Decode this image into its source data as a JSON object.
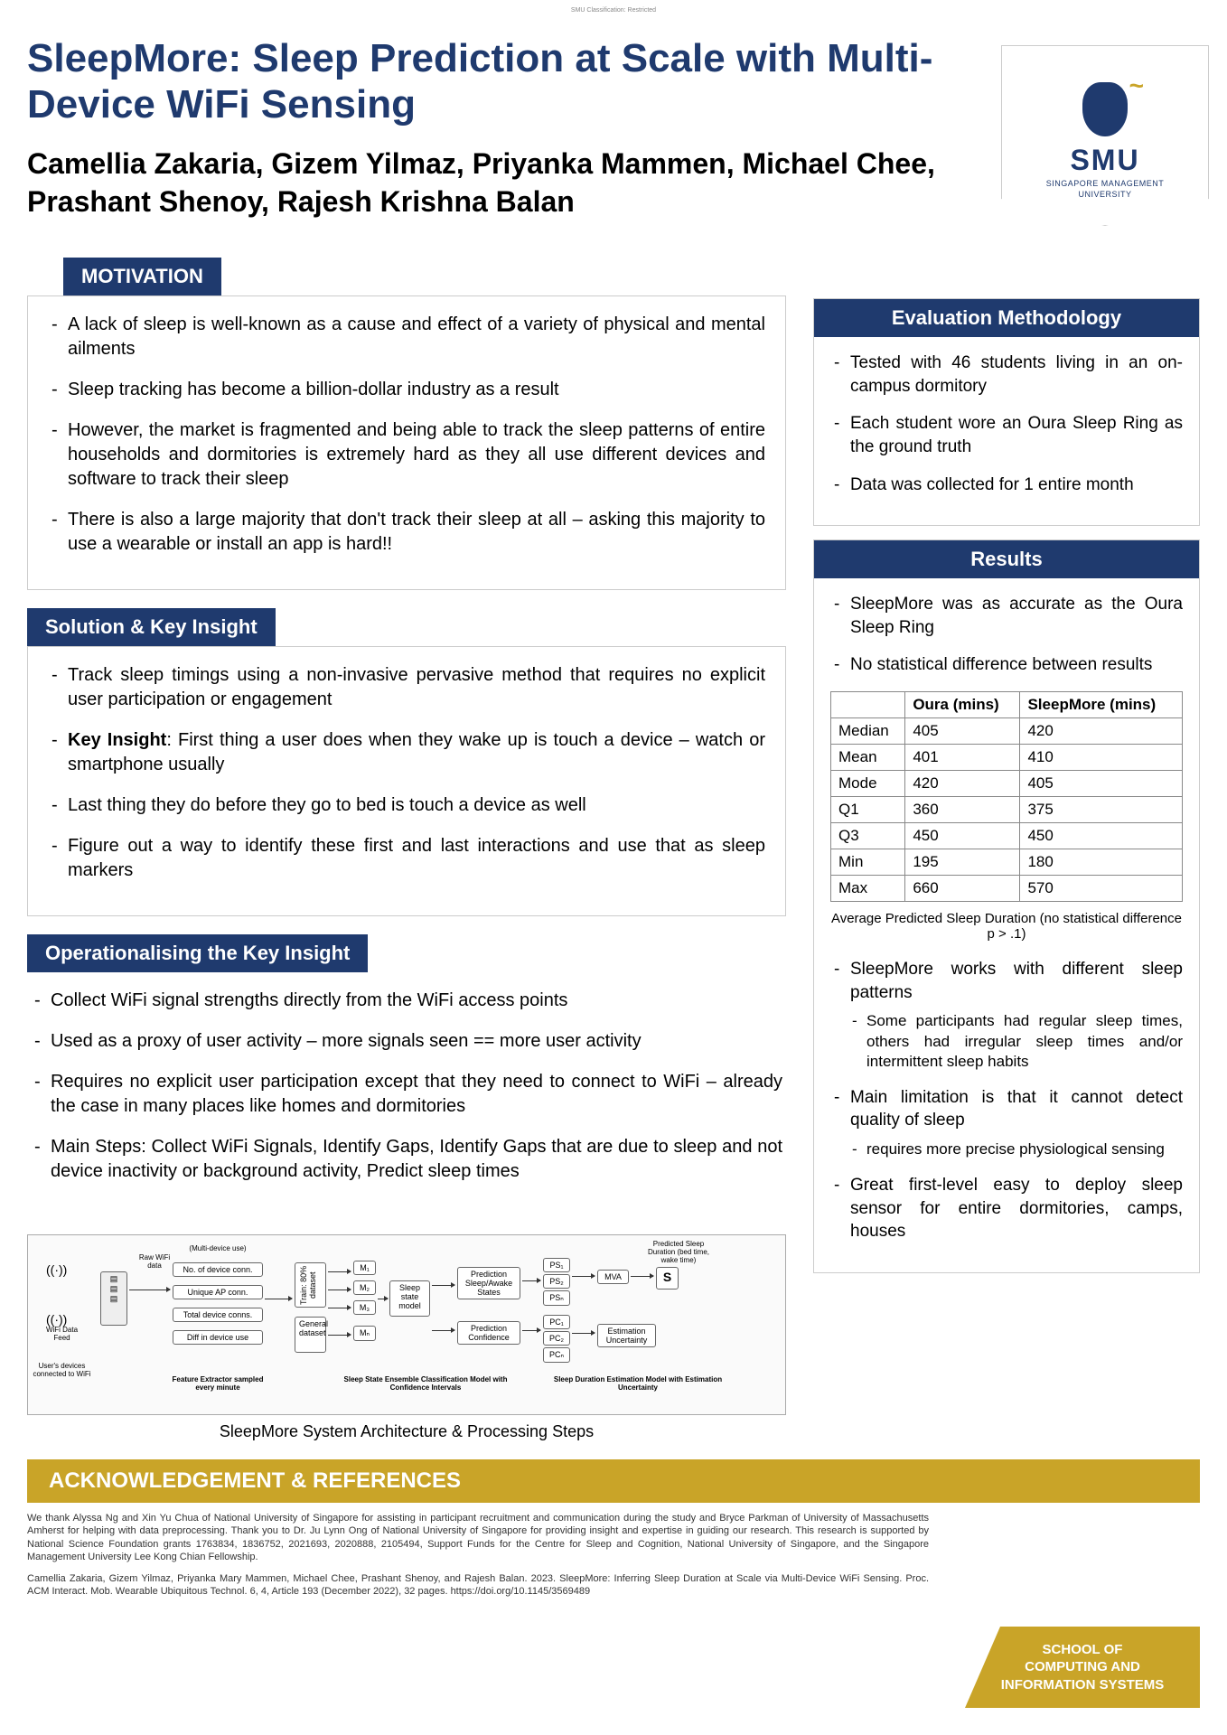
{
  "classification": "SMU Classification: Restricted",
  "title": "SleepMore: Sleep Prediction at Scale with Multi-Device WiFi Sensing",
  "authors": "Camellia Zakaria, Gizem Yilmaz, Priyanka Mammen, Michael Chee, Prashant Shenoy, Rajesh Krishna Balan",
  "logo": {
    "acronym": "SMU",
    "full": "SINGAPORE MANAGEMENT",
    "full2": "UNIVERSITY"
  },
  "motivation": {
    "header": "MOTIVATION",
    "items": [
      "A lack of sleep is well-known as a cause and effect of a variety of physical and mental ailments",
      "Sleep tracking has become a billion-dollar industry as a result",
      "However, the market is fragmented and being able to track the sleep patterns of entire households and dormitories is extremely hard as they all use different devices and software to track their sleep",
      "There is also a large majority that don't track their sleep at all – asking this majority to use a wearable or install an app is hard!!"
    ]
  },
  "solution": {
    "header": "Solution & Key Insight",
    "items": [
      "Track sleep timings using a non-invasive pervasive method that requires no explicit user participation or engagement",
      "<b>Key Insight</b>: First thing a user does when they wake up is touch a device – watch or smartphone usually",
      "Last thing they do before they go to bed is touch a device as well",
      "Figure out a way to identify these first and last interactions and use that as sleep markers"
    ]
  },
  "operational": {
    "header": "Operationalising the Key Insight",
    "items": [
      "Collect WiFi signal strengths directly from the WiFi access points",
      "Used as a proxy of user activity – more signals seen == more user activity",
      "Requires no explicit user participation except that they need to connect to WiFi – already the case in many places like homes and dormitories",
      "Main Steps: Collect WiFi Signals, Identify Gaps, Identify Gaps that are due to sleep and not device inactivity or background activity, Predict sleep times"
    ]
  },
  "arch": {
    "caption": "SleepMore System Architecture & Processing Steps",
    "labels": {
      "raw": "Raw WiFi data",
      "multi": "(Multi-device use)",
      "nodevice": "No. of device conn.",
      "uniqueap": "Unique AP conn.",
      "totalconn": "Total device conns.",
      "diffuse": "Diff in device use",
      "featext": "Feature Extractor sampled every minute",
      "train": "Train: 80% dataset",
      "general": "General dataset",
      "m1": "M₁",
      "m2": "M₂",
      "m3": "M₃",
      "mn": "Mₙ",
      "sleepstate": "Sleep state model",
      "predsa": "Prediction Sleep/Awake States",
      "predconf": "Prediction Confidence",
      "statemodel": "Sleep State Ensemble Classification Model with Confidence Intervals",
      "ps1": "PS₁",
      "ps2": "PS₂",
      "psn": "PSₙ",
      "pc1": "PC₁",
      "pc2": "PC₂",
      "pcn": "PCₙ",
      "mva": "MVA",
      "s": "S",
      "estunc": "Estimation Uncertainty",
      "predsleep": "Predicted Sleep Duration (bed time, wake time)",
      "estmodel": "Sleep Duration Estimation Model with Estimation Uncertainty",
      "wifidata": "WiFi Data Feed",
      "userdev": "User's devices connected to WiFi"
    }
  },
  "evalmethod": {
    "header": "Evaluation Methodology",
    "items": [
      "Tested with 46 students living in an on-campus dormitory",
      "Each student wore an Oura Sleep Ring as the ground truth",
      "Data was collected for 1 entire month"
    ]
  },
  "results": {
    "header": "Results",
    "intro": [
      "SleepMore was as accurate as the Oura Sleep Ring",
      "No statistical difference between results"
    ],
    "table": {
      "columns": [
        "",
        "Oura (mins)",
        "SleepMore (mins)"
      ],
      "rows": [
        [
          "Median",
          "405",
          "420"
        ],
        [
          "Mean",
          "401",
          "410"
        ],
        [
          "Mode",
          "420",
          "405"
        ],
        [
          "Q1",
          "360",
          "375"
        ],
        [
          "Q3",
          "450",
          "450"
        ],
        [
          "Min",
          "195",
          "180"
        ],
        [
          "Max",
          "660",
          "570"
        ]
      ],
      "caption": "Average Predicted Sleep Duration (no statistical difference p > .1)"
    },
    "after": [
      {
        "text": "SleepMore works with different sleep patterns",
        "sub": [
          "Some participants had regular sleep times, others had irregular sleep times and/or intermittent sleep habits"
        ]
      },
      {
        "text": "Main limitation is that it cannot detect quality of sleep",
        "sub": [
          "requires more precise physiological sensing"
        ]
      },
      {
        "text": "Great first-level easy to deploy sleep sensor for entire dormitories, camps, houses"
      }
    ]
  },
  "ack": {
    "header": "ACKNOWLEDGEMENT & REFERENCES",
    "para1": "We thank Alyssa Ng and Xin Yu Chua of National University of Singapore for assisting in participant recruitment and communication during the study and Bryce Parkman of University of Massachusetts Amherst for helping with data preprocessing. Thank you to Dr. Ju Lynn Ong of National University of Singapore for providing insight and expertise in guiding our research. This research is supported by National Science Foundation grants 1763834, 1836752, 2021693, 2020888, 2105494, Support Funds for the Centre for Sleep and Cognition, National University of Singapore, and the Singapore Management University Lee Kong Chian Fellowship.",
    "para2": "Camellia Zakaria, Gizem Yilmaz, Priyanka Mary Mammen, Michael Chee, Prashant Shenoy, and Rajesh Balan. 2023. SleepMore: Inferring Sleep Duration at Scale via Multi-Device WiFi Sensing. Proc. ACM Interact. Mob. Wearable Ubiquitous Technol. 6, 4, Article 193 (December 2022), 32 pages. https://doi.org/10.1145/3569489"
  },
  "footer_badge": {
    "line1": "SCHOOL OF",
    "line2": "COMPUTING AND",
    "line3": "INFORMATION SYSTEMS"
  }
}
